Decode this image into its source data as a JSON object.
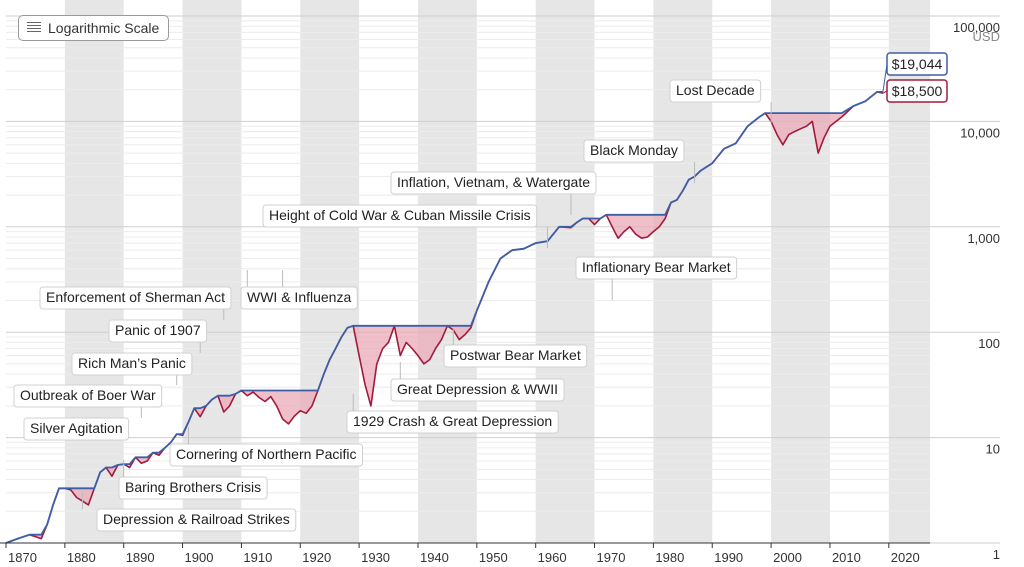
{
  "controls": {
    "scale_toggle_label": "Logarithmic Scale",
    "scale_icon": "list-lines-icon"
  },
  "colors": {
    "background": "#ffffff",
    "shade_band": "#e6e6e6",
    "peak_line": "#3e5fa8",
    "actual_line": "#a31a3c",
    "drawdown_fill": "#e9aab8",
    "gridline": "#d9d9d9",
    "axis_text": "#333333"
  },
  "chart_data": {
    "type": "line",
    "xlim": [
      1870,
      2027
    ],
    "ylim": [
      1,
      100000
    ],
    "y_scale": "log",
    "y_unit": "USD",
    "x_ticks": [
      1870,
      1880,
      1890,
      1900,
      1910,
      1920,
      1930,
      1940,
      1950,
      1960,
      1970,
      1980,
      1990,
      2000,
      2010,
      2020
    ],
    "y_ticks": [
      {
        "value": 1,
        "label": "1"
      },
      {
        "value": 10,
        "label": "10"
      },
      {
        "value": 100,
        "label": "100"
      },
      {
        "value": 1000,
        "label": "1,000"
      },
      {
        "value": 10000,
        "label": "10,000"
      },
      {
        "value": 100000,
        "label": "100,000"
      }
    ],
    "shaded_decades": [
      [
        1880,
        1890
      ],
      [
        1900,
        1910
      ],
      [
        1920,
        1930
      ],
      [
        1940,
        1950
      ],
      [
        1960,
        1970
      ],
      [
        1980,
        1990
      ],
      [
        2000,
        2010
      ],
      [
        2020,
        2027
      ]
    ],
    "series": [
      {
        "name": "",
        "role": "actual",
        "x": [
          1870,
          1872,
          1874,
          1876,
          1877,
          1878,
          1879,
          1880,
          1881,
          1882,
          1883,
          1884,
          1885,
          1886,
          1887,
          1888,
          1889,
          1890,
          1891,
          1892,
          1893,
          1894,
          1895,
          1896,
          1897,
          1898,
          1899,
          1900,
          1901,
          1902,
          1903,
          1904,
          1905,
          1906,
          1907,
          1908,
          1909,
          1910,
          1911,
          1912,
          1913,
          1914,
          1915,
          1916,
          1917,
          1918,
          1919,
          1920,
          1921,
          1922,
          1923,
          1924,
          1925,
          1926,
          1927,
          1928,
          1929,
          1930,
          1931,
          1932,
          1933,
          1934,
          1935,
          1936,
          1937,
          1938,
          1939,
          1940,
          1941,
          1942,
          1943,
          1944,
          1945,
          1946,
          1947,
          1948,
          1949,
          1950,
          1952,
          1954,
          1956,
          1958,
          1960,
          1962,
          1964,
          1966,
          1967,
          1968,
          1969,
          1970,
          1971,
          1972,
          1973,
          1974,
          1975,
          1976,
          1977,
          1978,
          1979,
          1980,
          1981,
          1982,
          1983,
          1984,
          1985,
          1986,
          1987,
          1988,
          1990,
          1992,
          1994,
          1996,
          1998,
          1999,
          2000,
          2001,
          2002,
          2003,
          2004,
          2005,
          2006,
          2007,
          2008,
          2009,
          2010,
          2012,
          2014,
          2016,
          2018,
          2019
        ],
        "y": [
          1.0,
          1.1,
          1.2,
          1.1,
          1.5,
          2.3,
          3.3,
          3.3,
          3.2,
          2.7,
          2.5,
          2.3,
          3.3,
          4.7,
          5.2,
          4.3,
          5.5,
          5.6,
          5.2,
          6.5,
          5.7,
          6.0,
          7.2,
          6.8,
          8.0,
          9.0,
          10.8,
          10.5,
          14.0,
          19.0,
          15.8,
          20.0,
          23.0,
          25.0,
          17.5,
          20.0,
          26.0,
          28.0,
          25.0,
          27.0,
          24.0,
          22.0,
          24.5,
          20.0,
          15.0,
          13.5,
          16.0,
          18.0,
          17.0,
          20.0,
          28.0,
          40.0,
          55.0,
          70.0,
          90.0,
          110.0,
          115.0,
          60.0,
          32.0,
          20.0,
          50.0,
          70.0,
          80.0,
          115.0,
          60.0,
          80.0,
          70.0,
          60.0,
          50.0,
          55.0,
          70.0,
          85.0,
          115.0,
          105.0,
          85.0,
          95.0,
          110.0,
          160.0,
          300.0,
          500.0,
          600.0,
          620.0,
          700.0,
          730.0,
          1000.0,
          980.0,
          1100.0,
          1200.0,
          1200.0,
          1050.0,
          1200.0,
          1300.0,
          1000.0,
          780.0,
          900.0,
          1000.0,
          850.0,
          780.0,
          800.0,
          900.0,
          1000.0,
          1200.0,
          1700.0,
          1800.0,
          2200.0,
          2800.0,
          3000.0,
          3400.0,
          4000.0,
          5500.0,
          6200.0,
          9000.0,
          11000.0,
          12000.0,
          10000.0,
          7500.0,
          6000.0,
          7500.0,
          8000.0,
          8500.0,
          9000.0,
          10000.0,
          5000.0,
          7000.0,
          9000.0,
          11000.0,
          14000.0,
          15500.0,
          19044.0,
          18500.0
        ]
      },
      {
        "name": "",
        "role": "previous-peak",
        "x": [
          1870,
          1872,
          1874,
          1876,
          1877,
          1878,
          1879,
          1880,
          1881,
          1882,
          1883,
          1884,
          1885,
          1886,
          1887,
          1888,
          1889,
          1890,
          1891,
          1892,
          1893,
          1894,
          1895,
          1896,
          1897,
          1898,
          1899,
          1900,
          1901,
          1902,
          1903,
          1904,
          1905,
          1906,
          1907,
          1908,
          1909,
          1910,
          1911,
          1912,
          1913,
          1914,
          1915,
          1916,
          1917,
          1918,
          1919,
          1920,
          1921,
          1922,
          1923,
          1924,
          1925,
          1926,
          1927,
          1928,
          1929,
          1930,
          1931,
          1932,
          1933,
          1934,
          1935,
          1936,
          1937,
          1938,
          1939,
          1940,
          1941,
          1942,
          1943,
          1944,
          1945,
          1946,
          1947,
          1948,
          1949,
          1950,
          1952,
          1954,
          1956,
          1958,
          1960,
          1962,
          1964,
          1966,
          1967,
          1968,
          1969,
          1970,
          1971,
          1972,
          1973,
          1974,
          1975,
          1976,
          1977,
          1978,
          1979,
          1980,
          1981,
          1982,
          1983,
          1984,
          1985,
          1986,
          1987,
          1988,
          1990,
          1992,
          1994,
          1996,
          1998,
          1999,
          2000,
          2001,
          2002,
          2003,
          2004,
          2005,
          2006,
          2007,
          2008,
          2009,
          2010,
          2012,
          2014,
          2016,
          2018,
          2019
        ],
        "y": [
          1.0,
          1.1,
          1.2,
          1.2,
          1.5,
          2.3,
          3.3,
          3.3,
          3.3,
          3.3,
          3.3,
          3.3,
          3.3,
          4.7,
          5.2,
          5.2,
          5.5,
          5.6,
          5.6,
          6.5,
          6.5,
          6.5,
          7.2,
          7.2,
          8.0,
          9.0,
          10.8,
          10.8,
          14.0,
          19.0,
          19.0,
          20.0,
          23.0,
          25.0,
          25.0,
          25.0,
          26.0,
          28.0,
          28.0,
          28.0,
          28.0,
          28.0,
          28.0,
          28.0,
          28.0,
          28.0,
          28.0,
          28.0,
          28.0,
          28.0,
          28.0,
          40.0,
          55.0,
          70.0,
          90.0,
          110.0,
          115.0,
          115.0,
          115.0,
          115.0,
          115.0,
          115.0,
          115.0,
          115.0,
          115.0,
          115.0,
          115.0,
          115.0,
          115.0,
          115.0,
          115.0,
          115.0,
          115.0,
          115.0,
          115.0,
          115.0,
          115.0,
          160.0,
          300.0,
          500.0,
          600.0,
          620.0,
          700.0,
          730.0,
          1000.0,
          1000.0,
          1100.0,
          1200.0,
          1200.0,
          1200.0,
          1200.0,
          1300.0,
          1300.0,
          1300.0,
          1300.0,
          1300.0,
          1300.0,
          1300.0,
          1300.0,
          1300.0,
          1300.0,
          1300.0,
          1700.0,
          1800.0,
          2200.0,
          2800.0,
          3000.0,
          3400.0,
          4000.0,
          5500.0,
          6200.0,
          9000.0,
          11000.0,
          12000.0,
          12000.0,
          12000.0,
          12000.0,
          12000.0,
          12000.0,
          12000.0,
          12000.0,
          12000.0,
          12000.0,
          12000.0,
          12000.0,
          12000.0,
          14000.0,
          15500.0,
          19044.0,
          19044.0
        ]
      }
    ],
    "annotations": [
      {
        "label": "Depression & Railroad Strikes",
        "year": 1883
      },
      {
        "label": "Baring Brothers Crisis",
        "year": 1890
      },
      {
        "label": "Silver Agitation",
        "year": 1893
      },
      {
        "label": "Outbreak of Boer War",
        "year": 1899
      },
      {
        "label": "Rich Man’s Panic",
        "year": 1903
      },
      {
        "label": "Panic of 1907",
        "year": 1907
      },
      {
        "label": "Enforcement of Sherman Act",
        "year": 1911
      },
      {
        "label": "WWI & Influenza",
        "year": 1917
      },
      {
        "label": "Cornering of Northern Pacific",
        "year": 1901
      },
      {
        "label": "1929 Crash & Great Depression",
        "year": 1929
      },
      {
        "label": "Great Depression & WWII",
        "year": 1937
      },
      {
        "label": "Postwar Bear Market",
        "year": 1946
      },
      {
        "label": "Height of Cold War & Cuban Missile Crisis",
        "year": 1962
      },
      {
        "label": "Inflation, Vietnam, & Watergate",
        "year": 1966
      },
      {
        "label": "Inflationary Bear Market",
        "year": 1973
      },
      {
        "label": "Black Monday",
        "year": 1987
      },
      {
        "label": "Lost Decade",
        "year": 2000
      }
    ],
    "end_labels": [
      {
        "label": "$19,044",
        "value": 19044,
        "role": "previous-peak"
      },
      {
        "label": "$18,500",
        "value": 18500,
        "role": "actual"
      }
    ]
  }
}
